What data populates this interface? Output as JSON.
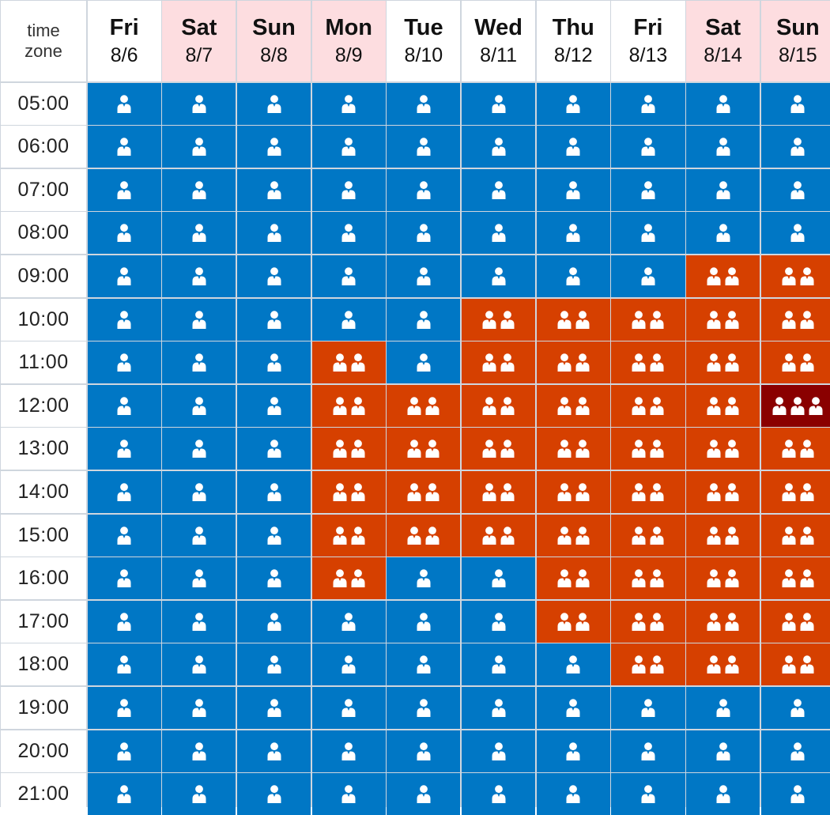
{
  "corner_label": [
    "time",
    "zone"
  ],
  "colors": {
    "level_1": "#0077c5",
    "level_2": "#d64000",
    "level_3": "#8a0000",
    "weekday_header": "#ffffff",
    "weekend_header": "#fddde0",
    "icon": "#ffffff"
  },
  "days": [
    {
      "name": "Fri",
      "date": "8/6",
      "weekend": false
    },
    {
      "name": "Sat",
      "date": "8/7",
      "weekend": true
    },
    {
      "name": "Sun",
      "date": "8/8",
      "weekend": true
    },
    {
      "name": "Mon",
      "date": "8/9",
      "weekend": true
    },
    {
      "name": "Tue",
      "date": "8/10",
      "weekend": false
    },
    {
      "name": "Wed",
      "date": "8/11",
      "weekend": false
    },
    {
      "name": "Thu",
      "date": "8/12",
      "weekend": false
    },
    {
      "name": "Fri",
      "date": "8/13",
      "weekend": false
    },
    {
      "name": "Sat",
      "date": "8/14",
      "weekend": true
    },
    {
      "name": "Sun",
      "date": "8/15",
      "weekend": true
    }
  ],
  "chart_data": {
    "type": "heatmap",
    "icon": "person-icon",
    "x": [
      "Fri 8/6",
      "Sat 8/7",
      "Sun 8/8",
      "Mon 8/9",
      "Tue 8/10",
      "Wed 8/11",
      "Thu 8/12",
      "Fri 8/13",
      "Sat 8/14",
      "Sun 8/15"
    ],
    "y": [
      "05:00",
      "06:00",
      "07:00",
      "08:00",
      "09:00",
      "10:00",
      "11:00",
      "12:00",
      "13:00",
      "14:00",
      "15:00",
      "16:00",
      "17:00",
      "18:00",
      "19:00",
      "20:00",
      "21:00"
    ],
    "values": [
      [
        1,
        1,
        1,
        1,
        1,
        1,
        1,
        1,
        1,
        1
      ],
      [
        1,
        1,
        1,
        1,
        1,
        1,
        1,
        1,
        1,
        1
      ],
      [
        1,
        1,
        1,
        1,
        1,
        1,
        1,
        1,
        1,
        1
      ],
      [
        1,
        1,
        1,
        1,
        1,
        1,
        1,
        1,
        1,
        1
      ],
      [
        1,
        1,
        1,
        1,
        1,
        1,
        1,
        1,
        2,
        2
      ],
      [
        1,
        1,
        1,
        1,
        1,
        2,
        2,
        2,
        2,
        2
      ],
      [
        1,
        1,
        1,
        2,
        1,
        2,
        2,
        2,
        2,
        2
      ],
      [
        1,
        1,
        1,
        2,
        2,
        2,
        2,
        2,
        2,
        3
      ],
      [
        1,
        1,
        1,
        2,
        2,
        2,
        2,
        2,
        2,
        2
      ],
      [
        1,
        1,
        1,
        2,
        2,
        2,
        2,
        2,
        2,
        2
      ],
      [
        1,
        1,
        1,
        2,
        2,
        2,
        2,
        2,
        2,
        2
      ],
      [
        1,
        1,
        1,
        2,
        1,
        1,
        2,
        2,
        2,
        2
      ],
      [
        1,
        1,
        1,
        1,
        1,
        1,
        2,
        2,
        2,
        2
      ],
      [
        1,
        1,
        1,
        1,
        1,
        1,
        1,
        2,
        2,
        2
      ],
      [
        1,
        1,
        1,
        1,
        1,
        1,
        1,
        1,
        1,
        1
      ],
      [
        1,
        1,
        1,
        1,
        1,
        1,
        1,
        1,
        1,
        1
      ],
      [
        1,
        1,
        1,
        1,
        1,
        1,
        1,
        1,
        1,
        1
      ]
    ]
  }
}
